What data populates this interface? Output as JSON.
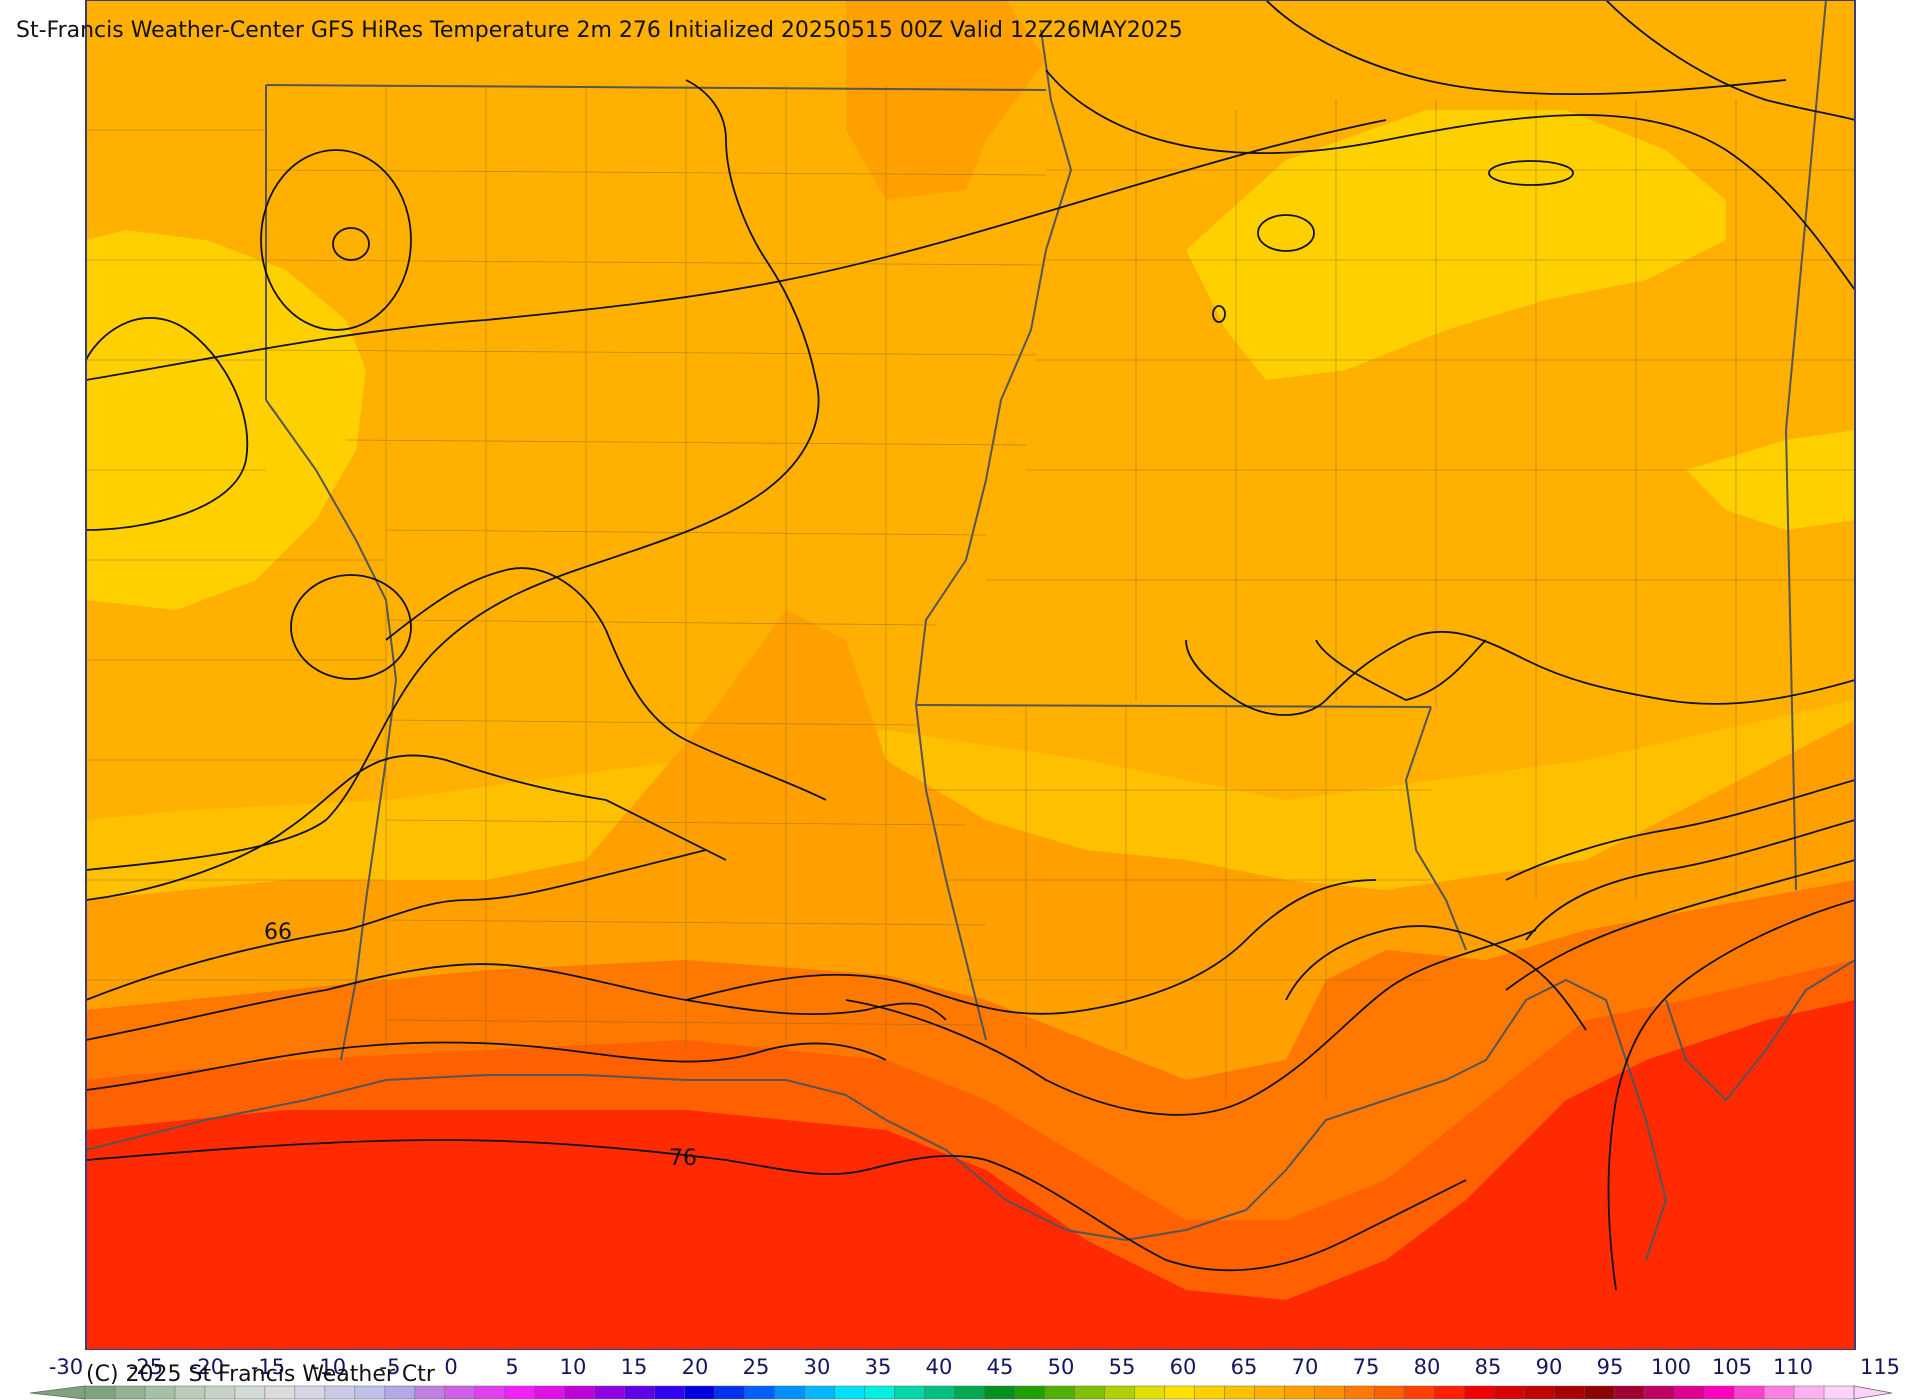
{
  "title": "St-Francis Weather-Center GFS HiRes Temperature 2m  276 Initialized 20250515 00Z Valid 12Z26MAY2025",
  "copyright": "(C) 2025 St Francis Weather Ctr",
  "contour_labels": [
    "66",
    "76"
  ],
  "colorbar": {
    "tick_labels": [
      "-30",
      "-25",
      "-20",
      "-15",
      "-10",
      "-5",
      "0",
      "5",
      "10",
      "15",
      "20",
      "25",
      "30",
      "35",
      "40",
      "45",
      "50",
      "55",
      "60",
      "65",
      "70",
      "75",
      "80",
      "85",
      "90",
      "95",
      "100",
      "105",
      "110",
      "115"
    ],
    "colors": [
      "#7ea37e",
      "#93b193",
      "#a6c0a6",
      "#b8ccb8",
      "#c6d3c6",
      "#d2dcd2",
      "#dcdcdc",
      "#d6d6e6",
      "#cbcbe8",
      "#c0c0ea",
      "#b4a8e6",
      "#c080e0",
      "#d060e8",
      "#e040f0",
      "#f020f8",
      "#e010e8",
      "#c000d8",
      "#9000e0",
      "#6000e8",
      "#3000f0",
      "#0000e0",
      "#0030f0",
      "#0060ff",
      "#0090ff",
      "#00b8ff",
      "#00e0ff",
      "#00f0e0",
      "#00d8a8",
      "#00c080",
      "#00a850",
      "#009020",
      "#20a000",
      "#50b000",
      "#80c000",
      "#b0d000",
      "#e0e000",
      "#ffe000",
      "#ffd000",
      "#ffc000",
      "#ffb000",
      "#ffa000",
      "#ff9000",
      "#ff7800",
      "#ff6000",
      "#ff4000",
      "#ff2000",
      "#f00000",
      "#d80000",
      "#c00000",
      "#a80000",
      "#900000",
      "#a00030",
      "#c00060",
      "#e00090",
      "#ff00c0",
      "#ff40d0",
      "#ff80e0",
      "#ffb0f0",
      "#ffd0f8"
    ]
  },
  "fill_colors": {
    "yellow": "#ffd000",
    "light_orange": "#ffc000",
    "orange": "#ffb000",
    "dark_orange": "#ffa000",
    "deep_orange": "#ff7800",
    "red_orange": "#ff6000",
    "red": "#ff2a00"
  }
}
